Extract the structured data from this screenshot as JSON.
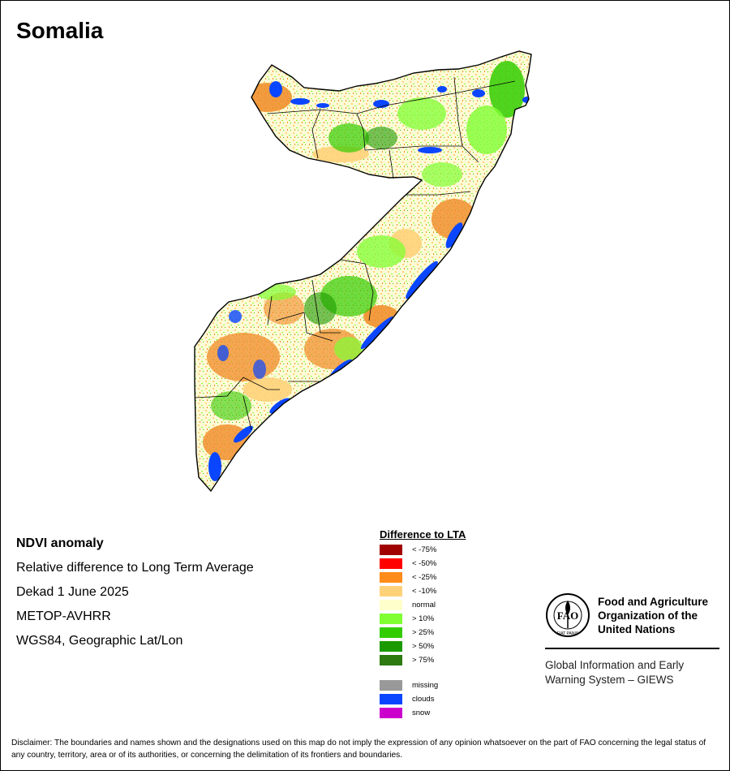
{
  "title": "Somalia",
  "info_lines": [
    "NDVI anomaly",
    "Relative difference to Long Term Average",
    "Dekad 1 June 2025",
    "METOP-AVHRR",
    "WGS84, Geographic Lat/Lon"
  ],
  "legend": {
    "title": "Difference to LTA",
    "items": [
      {
        "label": "< -75%",
        "color": "#a00000"
      },
      {
        "label": "< -50%",
        "color": "#ff0000"
      },
      {
        "label": "< -25%",
        "color": "#ff8c1a"
      },
      {
        "label": "< -10%",
        "color": "#ffd27a"
      },
      {
        "label": "normal",
        "color": "#ffffcc"
      },
      {
        "label": "> 10%",
        "color": "#80ff33"
      },
      {
        "label": "> 25%",
        "color": "#33cc00"
      },
      {
        "label": "> 50%",
        "color": "#1a9900"
      },
      {
        "label": "> 75%",
        "color": "#2d7a10"
      }
    ],
    "extra_items": [
      {
        "label": "missing",
        "color": "#999999"
      },
      {
        "label": "clouds",
        "color": "#0a46ff"
      },
      {
        "label": "snow",
        "color": "#cc00cc"
      }
    ]
  },
  "fao": {
    "org_lines": [
      "Food and Agriculture",
      "Organization of the",
      "United Nations"
    ],
    "logo_letters": "FAO",
    "logo_motto": "FIAT PANIS",
    "system_lines": [
      "Global Information and Early",
      "Warning System – GIEWS"
    ]
  },
  "disclaimer": "Disclaimer: The boundaries and names shown and the designations used on this map do not imply the expression of any opinion whatsoever on the part of FAO concerning the legal status of any country, territory, area or of its authorities, or concerning the delimitation of its frontiers and boundaries.",
  "map_colors": {
    "normal": "#fffbd6",
    "below_10": "#ffd27a",
    "below_25": "#f08a25",
    "above_10": "#80ff33",
    "above_25": "#33cc00",
    "above_50": "#1a9900",
    "clouds": "#0a46ff",
    "outline": "#000000"
  }
}
